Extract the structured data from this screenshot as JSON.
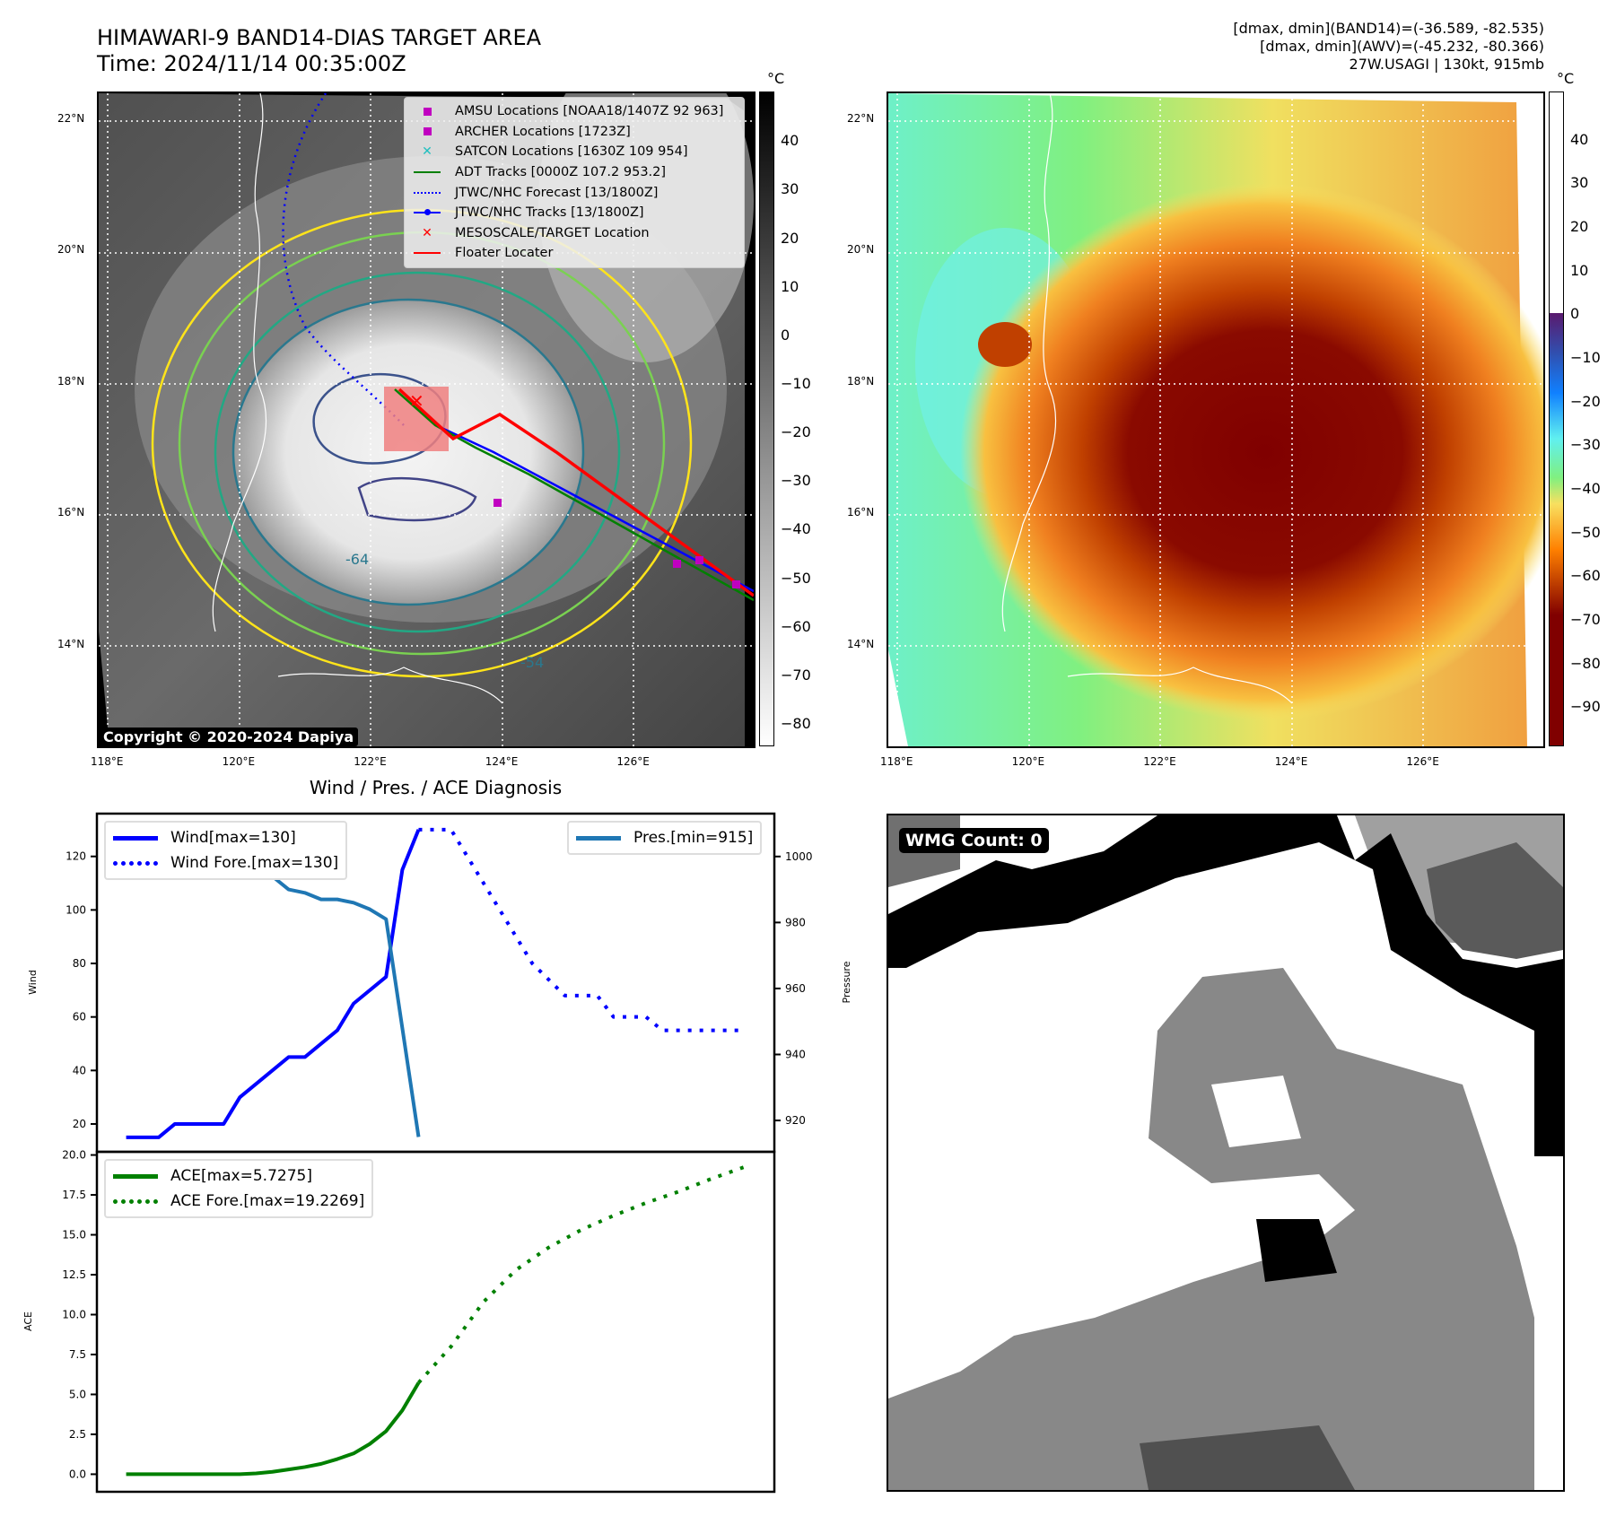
{
  "header": {
    "title": "HIMAWARI-9 BAND14-DIAS TARGET AREA",
    "time": "Time: 2024/11/14 00:35:00Z",
    "info": [
      "[dmax, dmin](BAND14)=(-36.589, -82.535)",
      "[dmax, dmin](AWV)=(-45.232, -80.366)",
      "27W.USAGI | 130kt, 915mb"
    ]
  },
  "maps": {
    "lon_ticks": [
      "118°E",
      "120°E",
      "122°E",
      "124°E",
      "126°E"
    ],
    "lat_ticks": [
      "22°N",
      "20°N",
      "18°N",
      "16°N",
      "14°N"
    ],
    "unit": "°C",
    "ir_colorbar_ticks": [
      "40",
      "30",
      "20",
      "10",
      "0",
      "−10",
      "−20",
      "−30",
      "−40",
      "−50",
      "−60",
      "−70",
      "−80"
    ],
    "ir_colorbar_values": [
      40,
      30,
      20,
      10,
      0,
      -10,
      -20,
      -30,
      -40,
      -50,
      -60,
      -70,
      -80
    ],
    "awv_colorbar_ticks": [
      "40",
      "30",
      "20",
      "10",
      "0",
      "−10",
      "−20",
      "−30",
      "−40",
      "−50",
      "−60",
      "−70",
      "−80",
      "−90"
    ],
    "awv_colorbar_values": [
      40,
      30,
      20,
      10,
      0,
      -10,
      -20,
      -30,
      -40,
      -50,
      -60,
      -70,
      -80,
      -90
    ],
    "contour_labels": [
      "-64",
      "-54"
    ],
    "copyright": "Copyright © 2020-2024 Dapiya",
    "legend": [
      {
        "label": "AMSU Locations [NOAA18/1407Z 92 963]",
        "color": "#c000c0",
        "marker": "square"
      },
      {
        "label": "ARCHER Locations [1723Z]",
        "color": "#c000c0",
        "marker": "square"
      },
      {
        "label": "SATCON Locations [1630Z 109 954]",
        "color": "#1fbfbf",
        "marker": "x"
      },
      {
        "label": "ADT Tracks [0000Z 107.2 953.2]",
        "color": "#008000",
        "marker": "line"
      },
      {
        "label": "JTWC/NHC Forecast [13/1800Z]",
        "color": "#0000ff",
        "marker": "dotted"
      },
      {
        "label": "JTWC/NHC Tracks [13/1800Z]",
        "color": "#0000ff",
        "marker": "line-dot"
      },
      {
        "label": "MESOSCALE/TARGET Location",
        "color": "#ff0000",
        "marker": "x"
      },
      {
        "label": "Floater Locater",
        "color": "#ff0000",
        "marker": "line"
      }
    ],
    "wmg_label": "WMG Count: 0"
  },
  "chart_data": [
    {
      "type": "line",
      "title": "Wind / Pres. / ACE Diagnosis",
      "ylabel": "Wind",
      "y2label": "Pressure",
      "ylim": [
        9.6,
        136
      ],
      "y2lim": [
        910.5,
        1013
      ],
      "xlim": [
        -1.8,
        39.9
      ],
      "yticks": [
        20,
        40,
        60,
        80,
        100,
        120
      ],
      "y2ticks": [
        920,
        940,
        960,
        980,
        1000
      ],
      "series": [
        {
          "name": "Wind[max=130]",
          "color": "#0000ff",
          "style": "solid",
          "axis": "left",
          "x": [
            0,
            2,
            3,
            6,
            7,
            10,
            11,
            13,
            14,
            16,
            17,
            18
          ],
          "values": [
            15,
            15,
            20,
            20,
            30,
            45,
            45,
            55,
            65,
            75,
            115,
            130
          ]
        },
        {
          "name": "Wind Fore.[max=130]",
          "color": "#0000ff",
          "style": "dotted",
          "axis": "left",
          "x": [
            18,
            20,
            23,
            25,
            27,
            29,
            30,
            32,
            33,
            38
          ],
          "values": [
            130,
            130,
            100,
            80,
            68,
            68,
            60,
            60,
            55,
            55
          ]
        },
        {
          "name": "Pres.[min=915]",
          "color": "#1f77b4",
          "style": "solid",
          "axis": "right",
          "x": [
            0,
            1,
            2,
            3,
            4,
            5,
            6,
            7,
            8,
            9,
            10,
            11,
            12,
            13,
            14,
            15,
            16,
            17,
            18
          ],
          "values": [
            1008,
            1008,
            1006,
            1006,
            1004,
            1004,
            1002,
            998,
            996,
            994,
            990,
            989,
            987,
            987,
            986,
            984,
            981,
            948,
            915
          ]
        }
      ]
    },
    {
      "type": "line",
      "ylabel": "ACE",
      "ylim": [
        -1.1,
        20.2
      ],
      "xlim": [
        -1.8,
        39.9
      ],
      "yticks": [
        0,
        2.5,
        5,
        7.5,
        10,
        12.5,
        15,
        17.5,
        20
      ],
      "ytick_labels": [
        "0.0",
        "2.5",
        "5.0",
        "7.5",
        "10.0",
        "12.5",
        "15.0",
        "17.5",
        "20.0"
      ],
      "series": [
        {
          "name": "ACE[max=5.7275]",
          "color": "#008000",
          "style": "solid",
          "x": [
            0,
            1,
            2,
            3,
            4,
            5,
            6,
            7,
            8,
            9,
            10,
            11,
            12,
            13,
            14,
            15,
            16,
            17,
            18
          ],
          "values": [
            0,
            0,
            0,
            0,
            0,
            0,
            0,
            0,
            0.05,
            0.15,
            0.3,
            0.45,
            0.65,
            0.95,
            1.3,
            1.9,
            2.7,
            4.0,
            5.73
          ]
        },
        {
          "name": "ACE Fore.[max=19.2269]",
          "color": "#008000",
          "style": "dotted",
          "x": [
            18,
            20,
            22,
            24,
            26,
            28,
            30,
            32,
            34,
            36,
            38
          ],
          "values": [
            5.73,
            8.0,
            10.8,
            12.8,
            14.2,
            15.3,
            16.2,
            17.0,
            17.7,
            18.5,
            19.23
          ]
        }
      ]
    }
  ]
}
